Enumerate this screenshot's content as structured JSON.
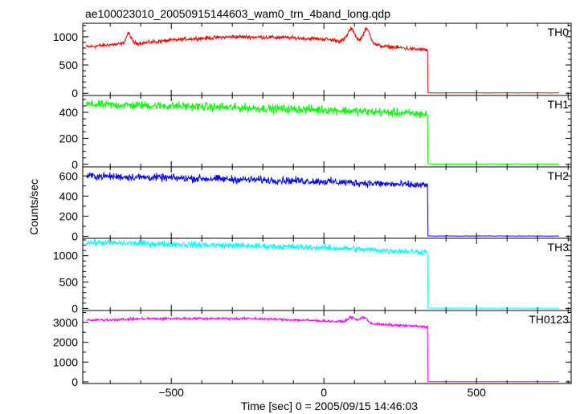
{
  "title": "ae100023010_20050915144603_wam0_trn_4band_long.qdp",
  "chart_data": {
    "type": "line",
    "title": "ae100023010_20050915144603_wam0_trn_4band_long.qdp",
    "xlabel": "Time [sec] 0 = 2005/09/15 14:46:03",
    "ylabel": "Counts/sec",
    "xlim": [
      -790,
      810
    ],
    "x_ticks": [
      -500,
      0,
      500
    ],
    "x_tick_labels": [
      "−500",
      "0",
      "500"
    ],
    "minor_x_step": 100,
    "grid": false,
    "shutdown_time": 340,
    "x_end": 770,
    "panels": [
      {
        "name": "TH0",
        "color": "#ff0000",
        "ylim": [
          -40,
          1240
        ],
        "y_ticks": [
          0,
          500,
          1000
        ],
        "y_tick_labels": [
          "0",
          "500",
          "1000"
        ],
        "minor_y_step": 100,
        "profile": [
          [
            -780,
            820
          ],
          [
            -700,
            860
          ],
          [
            -600,
            890
          ],
          [
            -450,
            960
          ],
          [
            -300,
            1000
          ],
          [
            -150,
            990
          ],
          [
            0,
            960
          ],
          [
            100,
            900
          ],
          [
            200,
            830
          ],
          [
            300,
            780
          ],
          [
            338,
            770
          ]
        ],
        "noise": 30,
        "bumps": [
          [
            -640,
            180,
            8
          ],
          [
            90,
            230,
            12
          ],
          [
            140,
            260,
            12
          ]
        ],
        "tail_level": 5
      },
      {
        "name": "TH1",
        "color": "#00ff00",
        "ylim": [
          -20,
          530
        ],
        "y_ticks": [
          0,
          200,
          400
        ],
        "y_tick_labels": [
          "0",
          "200",
          "400"
        ],
        "minor_y_step": 50,
        "profile": [
          [
            -780,
            460
          ],
          [
            -500,
            450
          ],
          [
            -200,
            430
          ],
          [
            0,
            420
          ],
          [
            200,
            400
          ],
          [
            338,
            385
          ]
        ],
        "noise": 28,
        "bumps": [],
        "tail_level": 3
      },
      {
        "name": "TH2",
        "color": "#0000ff",
        "ylim": [
          -20,
          690
        ],
        "y_ticks": [
          0,
          200,
          400,
          600
        ],
        "y_tick_labels": [
          "0",
          "200",
          "400",
          "600"
        ],
        "minor_y_step": 100,
        "profile": [
          [
            -780,
            600
          ],
          [
            -500,
            580
          ],
          [
            -200,
            560
          ],
          [
            0,
            545
          ],
          [
            200,
            520
          ],
          [
            338,
            505
          ]
        ],
        "noise": 32,
        "bumps": [],
        "tail_level": 3
      },
      {
        "name": "TH3",
        "color": "#00ffff",
        "ylim": [
          -40,
          1330
        ],
        "y_ticks": [
          0,
          500,
          1000
        ],
        "y_tick_labels": [
          "0",
          "500",
          "1000"
        ],
        "minor_y_step": 100,
        "profile": [
          [
            -780,
            1250
          ],
          [
            -500,
            1220
          ],
          [
            -200,
            1180
          ],
          [
            0,
            1150
          ],
          [
            200,
            1100
          ],
          [
            338,
            1070
          ]
        ],
        "noise": 50,
        "bumps": [],
        "tail_level": 5
      },
      {
        "name": "TH0123",
        "color": "#ff00ff",
        "ylim": [
          -80,
          3600
        ],
        "y_ticks": [
          0,
          1000,
          2000,
          3000
        ],
        "y_tick_labels": [
          "0",
          "1000",
          "2000",
          "3000"
        ],
        "minor_y_step": 500,
        "profile": [
          [
            -780,
            3100
          ],
          [
            -600,
            3180
          ],
          [
            -400,
            3200
          ],
          [
            -200,
            3180
          ],
          [
            0,
            3080
          ],
          [
            100,
            3000
          ],
          [
            200,
            2880
          ],
          [
            338,
            2780
          ]
        ],
        "noise": 55,
        "bumps": [
          [
            90,
            250,
            12
          ],
          [
            130,
            300,
            12
          ]
        ],
        "tail_level": 10
      }
    ]
  }
}
